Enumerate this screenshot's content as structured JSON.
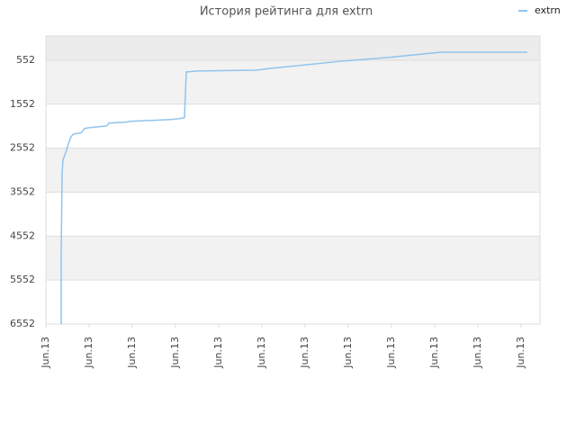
{
  "chart_data": {
    "type": "line",
    "title": "История рейтинга для extrn",
    "series": [
      {
        "name": "extrn",
        "color": "#90c4ee",
        "x": [
          0.354,
          0.354,
          0.375,
          0.396,
          0.458,
          0.521,
          0.583,
          0.646,
          0.8125,
          0.896,
          1.021,
          1.229,
          1.417,
          1.458,
          1.854,
          1.958,
          2.479,
          2.896,
          3.104,
          3.208,
          3.229,
          3.25,
          3.521,
          4.875,
          5.188,
          6.021,
          6.854,
          7.896,
          8.729,
          9.146,
          11.146
        ],
        "values": [
          6552,
          5001,
          3123,
          2817,
          2654,
          2450,
          2287,
          2226,
          2205,
          2103,
          2083,
          2062,
          2042,
          1981,
          1960,
          1940,
          1919,
          1899,
          1879,
          1858,
          1348,
          817,
          797,
          777,
          736,
          654,
          572,
          491,
          409,
          368,
          368
        ]
      }
    ],
    "xlim": [
      0,
      11.44
    ],
    "xticks": [
      {
        "value": 0,
        "label": "Jun.13"
      },
      {
        "value": 1,
        "label": "Jun.13"
      },
      {
        "value": 2,
        "label": "Jun.13"
      },
      {
        "value": 3,
        "label": "Jun.13"
      },
      {
        "value": 4,
        "label": "Jun.13"
      },
      {
        "value": 5,
        "label": "Jun.13"
      },
      {
        "value": 6,
        "label": "Jun.13"
      },
      {
        "value": 7,
        "label": "Jun.13"
      },
      {
        "value": 8,
        "label": "Jun.13"
      },
      {
        "value": 9,
        "label": "Jun.13"
      },
      {
        "value": 10,
        "label": "Jun.13"
      },
      {
        "value": 11,
        "label": "Jun.13"
      }
    ],
    "ylim": [
      6552,
      0
    ],
    "yticks": [
      552,
      1552,
      2552,
      3552,
      4552,
      5552,
      6552
    ],
    "grid": true,
    "legend": "top-right"
  }
}
